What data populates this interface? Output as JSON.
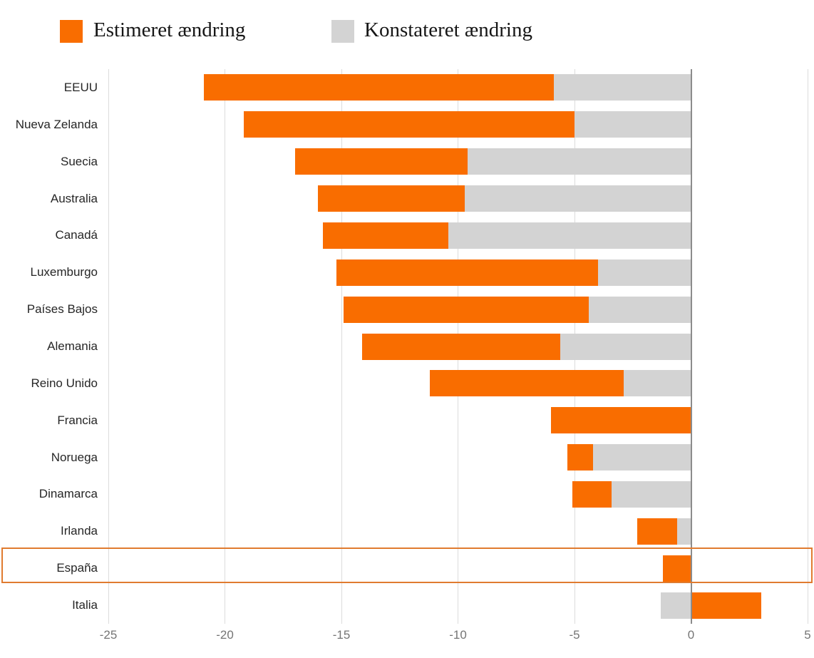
{
  "legend": {
    "estimated_label": "Estimeret ændring",
    "observed_label": "Konstateret ændring"
  },
  "colors": {
    "estimated": "#F96D00",
    "observed": "#D3D3D3",
    "highlight_border": "#E07B2F",
    "zero_line": "#8C8C8C",
    "gridline": "#DCDCDC",
    "axis_text": "#757575",
    "category_text": "#262626"
  },
  "chart_data": {
    "type": "bar",
    "orientation": "horizontal",
    "title": "",
    "xlabel": "",
    "ylabel": "",
    "x_axis": {
      "ticks": [
        -25,
        -20,
        -15,
        -10,
        -5,
        0,
        5
      ],
      "range": [
        -25,
        5
      ]
    },
    "grid": true,
    "legend_position": "top",
    "highlighted_category": "España",
    "categories": [
      "EEUU",
      "Nueva Zelanda",
      "Suecia",
      "Australia",
      "Canadá",
      "Luxemburgo",
      "Países Bajos",
      "Alemania",
      "Reino Unido",
      "Francia",
      "Noruega",
      "Dinamarca",
      "Irlanda",
      "España",
      "Italia"
    ],
    "series": [
      {
        "name": "Estimeret ændring",
        "color_key": "estimated",
        "values": [
          -20.9,
          -19.2,
          -17.0,
          -16.0,
          -15.8,
          -15.2,
          -14.9,
          -14.1,
          -11.2,
          -6.0,
          -5.3,
          -5.1,
          -2.3,
          -1.2,
          3.0
        ]
      },
      {
        "name": "Konstateret ændring",
        "color_key": "observed",
        "values": [
          -5.9,
          -5.0,
          -9.6,
          -9.7,
          -10.4,
          -4.0,
          -4.4,
          -5.6,
          -2.9,
          0,
          -4.2,
          -3.4,
          -0.6,
          0,
          -1.3
        ]
      }
    ]
  }
}
